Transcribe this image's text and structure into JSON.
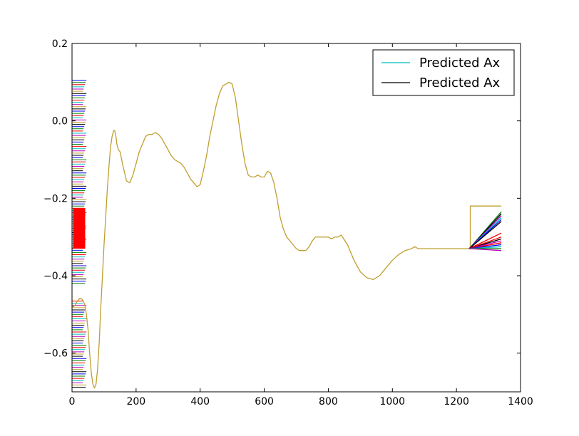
{
  "chart_data": {
    "type": "line",
    "title": "",
    "xlabel": "",
    "ylabel": "",
    "xlim": [
      0,
      1400
    ],
    "ylim": [
      -0.7,
      0.2
    ],
    "xticks": [
      0,
      200,
      400,
      600,
      800,
      1000,
      1200,
      1400
    ],
    "yticks": [
      -0.6,
      -0.4,
      -0.2,
      0.0,
      0.2
    ],
    "xtick_labels": [
      "0",
      "200",
      "400",
      "600",
      "800",
      "1000",
      "1200",
      "1400"
    ],
    "ytick_labels": [
      "−0.6",
      "−0.4",
      "−0.2",
      "0.0",
      "0.2"
    ],
    "grid": false,
    "legend_placement": "upper-right",
    "legend": [
      {
        "label": "Predicted Ax",
        "color": "#00bfbf"
      },
      {
        "label": "Predicted Ax",
        "color": "#000000"
      }
    ],
    "series": [
      {
        "color": "#bf9f2f",
        "x": [
          0,
          5,
          10,
          15,
          20,
          25,
          30,
          35,
          40,
          45,
          50,
          55,
          60,
          65,
          70,
          75,
          80,
          85,
          90,
          95,
          100,
          105,
          110,
          115,
          120,
          125,
          130,
          133,
          137,
          140,
          145,
          150,
          160,
          170,
          180,
          190,
          200,
          210,
          220,
          230,
          240,
          250,
          260,
          270,
          280,
          290,
          300,
          310,
          320,
          330,
          340,
          350,
          360,
          370,
          380,
          390,
          400,
          410,
          420,
          430,
          440,
          450,
          460,
          470,
          480,
          490,
          500,
          510,
          520,
          530,
          540,
          550,
          560,
          570,
          580,
          590,
          600,
          610,
          620,
          630,
          640,
          650,
          660,
          670,
          680,
          690,
          700,
          710,
          720,
          730,
          740,
          750,
          760,
          770,
          780,
          790,
          800,
          810,
          820,
          830,
          840,
          860,
          880,
          900,
          920,
          940,
          960,
          980,
          1000,
          1020,
          1040,
          1060,
          1070,
          1080,
          1090,
          1100,
          1110,
          1120,
          1130,
          1140,
          1150,
          1160,
          1170,
          1180,
          1190,
          1200,
          1210,
          1220,
          1230,
          1240
        ],
        "y": [
          -0.48,
          -0.48,
          -0.475,
          -0.468,
          -0.462,
          -0.458,
          -0.46,
          -0.465,
          -0.475,
          -0.5,
          -0.54,
          -0.6,
          -0.65,
          -0.68,
          -0.69,
          -0.68,
          -0.64,
          -0.57,
          -0.48,
          -0.4,
          -0.32,
          -0.25,
          -0.18,
          -0.12,
          -0.07,
          -0.04,
          -0.025,
          -0.025,
          -0.04,
          -0.06,
          -0.075,
          -0.08,
          -0.12,
          -0.155,
          -0.16,
          -0.14,
          -0.11,
          -0.08,
          -0.06,
          -0.04,
          -0.035,
          -0.035,
          -0.03,
          -0.035,
          -0.045,
          -0.06,
          -0.075,
          -0.09,
          -0.1,
          -0.105,
          -0.11,
          -0.12,
          -0.135,
          -0.15,
          -0.16,
          -0.17,
          -0.165,
          -0.13,
          -0.09,
          -0.04,
          0.0,
          0.04,
          0.07,
          0.09,
          0.095,
          0.1,
          0.095,
          0.06,
          0.0,
          -0.06,
          -0.11,
          -0.14,
          -0.145,
          -0.145,
          -0.14,
          -0.145,
          -0.145,
          -0.13,
          -0.135,
          -0.16,
          -0.2,
          -0.25,
          -0.28,
          -0.3,
          -0.31,
          -0.32,
          -0.33,
          -0.335,
          -0.335,
          -0.335,
          -0.325,
          -0.31,
          -0.3,
          -0.3,
          -0.3,
          -0.3,
          -0.3,
          -0.305,
          -0.3,
          -0.3,
          -0.295,
          -0.32,
          -0.36,
          -0.39,
          -0.405,
          -0.41,
          -0.4,
          -0.38,
          -0.36,
          -0.345,
          -0.335,
          -0.33,
          -0.325,
          -0.33,
          -0.33,
          -0.33,
          -0.33,
          -0.33,
          -0.33,
          -0.33,
          -0.33,
          -0.33,
          -0.33,
          -0.33,
          -0.33,
          -0.33,
          -0.33,
          -0.33,
          -0.33,
          -0.33
        ]
      },
      {
        "color": "#bf9f2f",
        "x": [
          1240,
          1243,
          1243,
          1340
        ],
        "y": [
          -0.33,
          -0.33,
          -0.22,
          -0.22
        ]
      },
      {
        "color": "#007f00",
        "x": [
          1240,
          1340
        ],
        "y": [
          -0.33,
          -0.235
        ]
      },
      {
        "color": "#000000",
        "x": [
          1240,
          1340
        ],
        "y": [
          -0.33,
          -0.24
        ]
      },
      {
        "color": "#bf00bf",
        "x": [
          1240,
          1340
        ],
        "y": [
          -0.33,
          -0.245
        ]
      },
      {
        "color": "#00bfbf",
        "x": [
          1240,
          1340
        ],
        "y": [
          -0.33,
          -0.25
        ]
      },
      {
        "color": "#0000ff",
        "x": [
          1240,
          1340
        ],
        "y": [
          -0.33,
          -0.255
        ]
      },
      {
        "color": "#000000",
        "x": [
          1240,
          1340
        ],
        "y": [
          -0.33,
          -0.26
        ]
      },
      {
        "color": "#ff0000",
        "x": [
          1240,
          1340
        ],
        "y": [
          -0.33,
          -0.29
        ]
      },
      {
        "color": "#ff0000",
        "x": [
          1240,
          1340
        ],
        "y": [
          -0.33,
          -0.3
        ]
      },
      {
        "color": "#000000",
        "x": [
          1240,
          1340
        ],
        "y": [
          -0.33,
          -0.305
        ]
      },
      {
        "color": "#bf00bf",
        "x": [
          1240,
          1340
        ],
        "y": [
          -0.33,
          -0.31
        ]
      },
      {
        "color": "#ff0000",
        "x": [
          1240,
          1340
        ],
        "y": [
          -0.33,
          -0.315
        ]
      },
      {
        "color": "#0000ff",
        "x": [
          1240,
          1340
        ],
        "y": [
          -0.33,
          -0.32
        ]
      },
      {
        "color": "#00bfbf",
        "x": [
          1240,
          1340
        ],
        "y": [
          -0.33,
          -0.325
        ]
      },
      {
        "color": "#007f00",
        "x": [
          1240,
          1340
        ],
        "y": [
          -0.33,
          -0.33
        ]
      },
      {
        "color": "#bf00bf",
        "x": [
          1240,
          1340
        ],
        "y": [
          -0.33,
          -0.335
        ]
      }
    ],
    "sample_block": {
      "x_range": [
        0,
        45
      ],
      "y_range": [
        -0.69,
        0.105
      ],
      "gap_range": [
        -0.425,
        -0.46
      ],
      "colors": [
        "#0000ff",
        "#007f00",
        "#ff0000",
        "#00bfbf",
        "#bf00bf",
        "#bf9f2f",
        "#000000"
      ],
      "burst_color": "#ff0000",
      "burst_y_range": [
        -0.33,
        -0.225
      ]
    }
  }
}
